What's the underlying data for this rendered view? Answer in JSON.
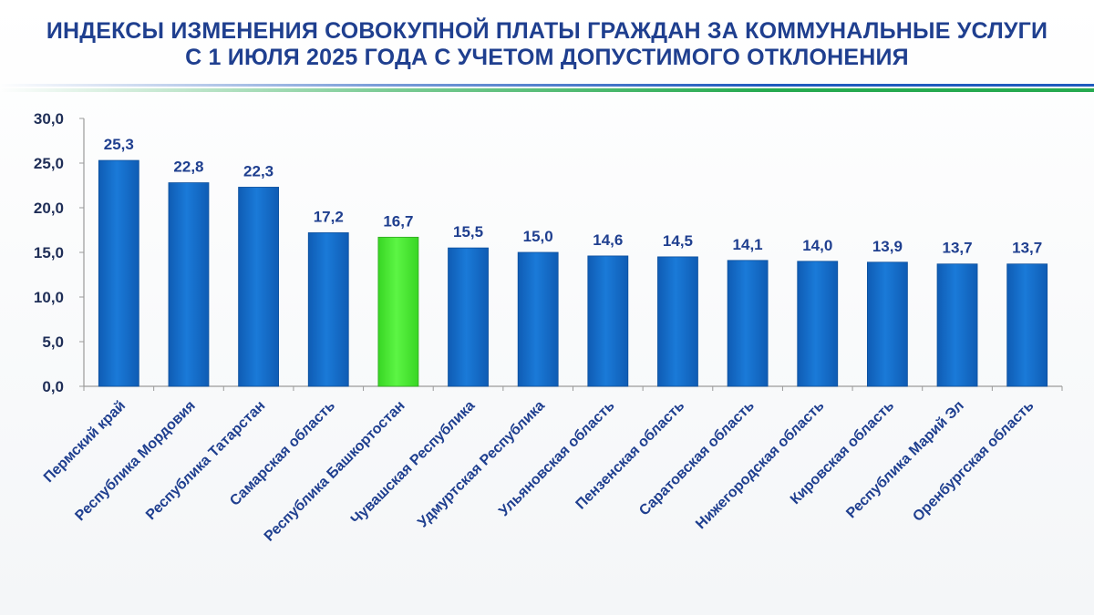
{
  "header": {
    "title_line1": "ИНДЕКСЫ ИЗМЕНЕНИЯ СОВОКУПНОЙ ПЛАТЫ ГРАЖДАН ЗА КОММУНАЛЬНЫЕ УСЛУГИ",
    "title_line2": "С 1 ИЮЛЯ 2025 ГОДА С УЧЕТОМ ДОПУСТИМОГО ОТКЛОНЕНИЯ"
  },
  "chart_data": {
    "type": "bar",
    "categories": [
      "Пермский край",
      "Республика Мордовия",
      "Республика Татарстан",
      "Самарская область",
      "Республика Башкортостан",
      "Чувашская Республика",
      "Удмуртская Республика",
      "Ульяновская область",
      "Пензенская область",
      "Саратовская область",
      "Нижегородская область",
      "Кировская область",
      "Республика Марий Эл",
      "Оренбургская область"
    ],
    "values": [
      25.3,
      22.8,
      22.3,
      17.2,
      16.7,
      15.5,
      15.0,
      14.6,
      14.5,
      14.1,
      14.0,
      13.9,
      13.7,
      13.7
    ],
    "value_labels": [
      "25,3",
      "22,8",
      "22,3",
      "17,2",
      "16,7",
      "15,5",
      "15,0",
      "14,6",
      "14,5",
      "14,1",
      "14,0",
      "13,9",
      "13,7",
      "13,7"
    ],
    "yticks": [
      0,
      5,
      10,
      15,
      20,
      25,
      30
    ],
    "ytick_labels": [
      "0,0",
      "5,0",
      "10,0",
      "15,0",
      "20,0",
      "25,0",
      "30,0"
    ],
    "ylim": [
      0,
      30
    ],
    "grid": false,
    "legend": false,
    "highlight_category": "Республика Башкортостан",
    "colors": {
      "bar": "#1570d0",
      "bar_highlight": "#4cec36",
      "axis": "#9a9a9a",
      "title": "#1f3f8f"
    }
  }
}
